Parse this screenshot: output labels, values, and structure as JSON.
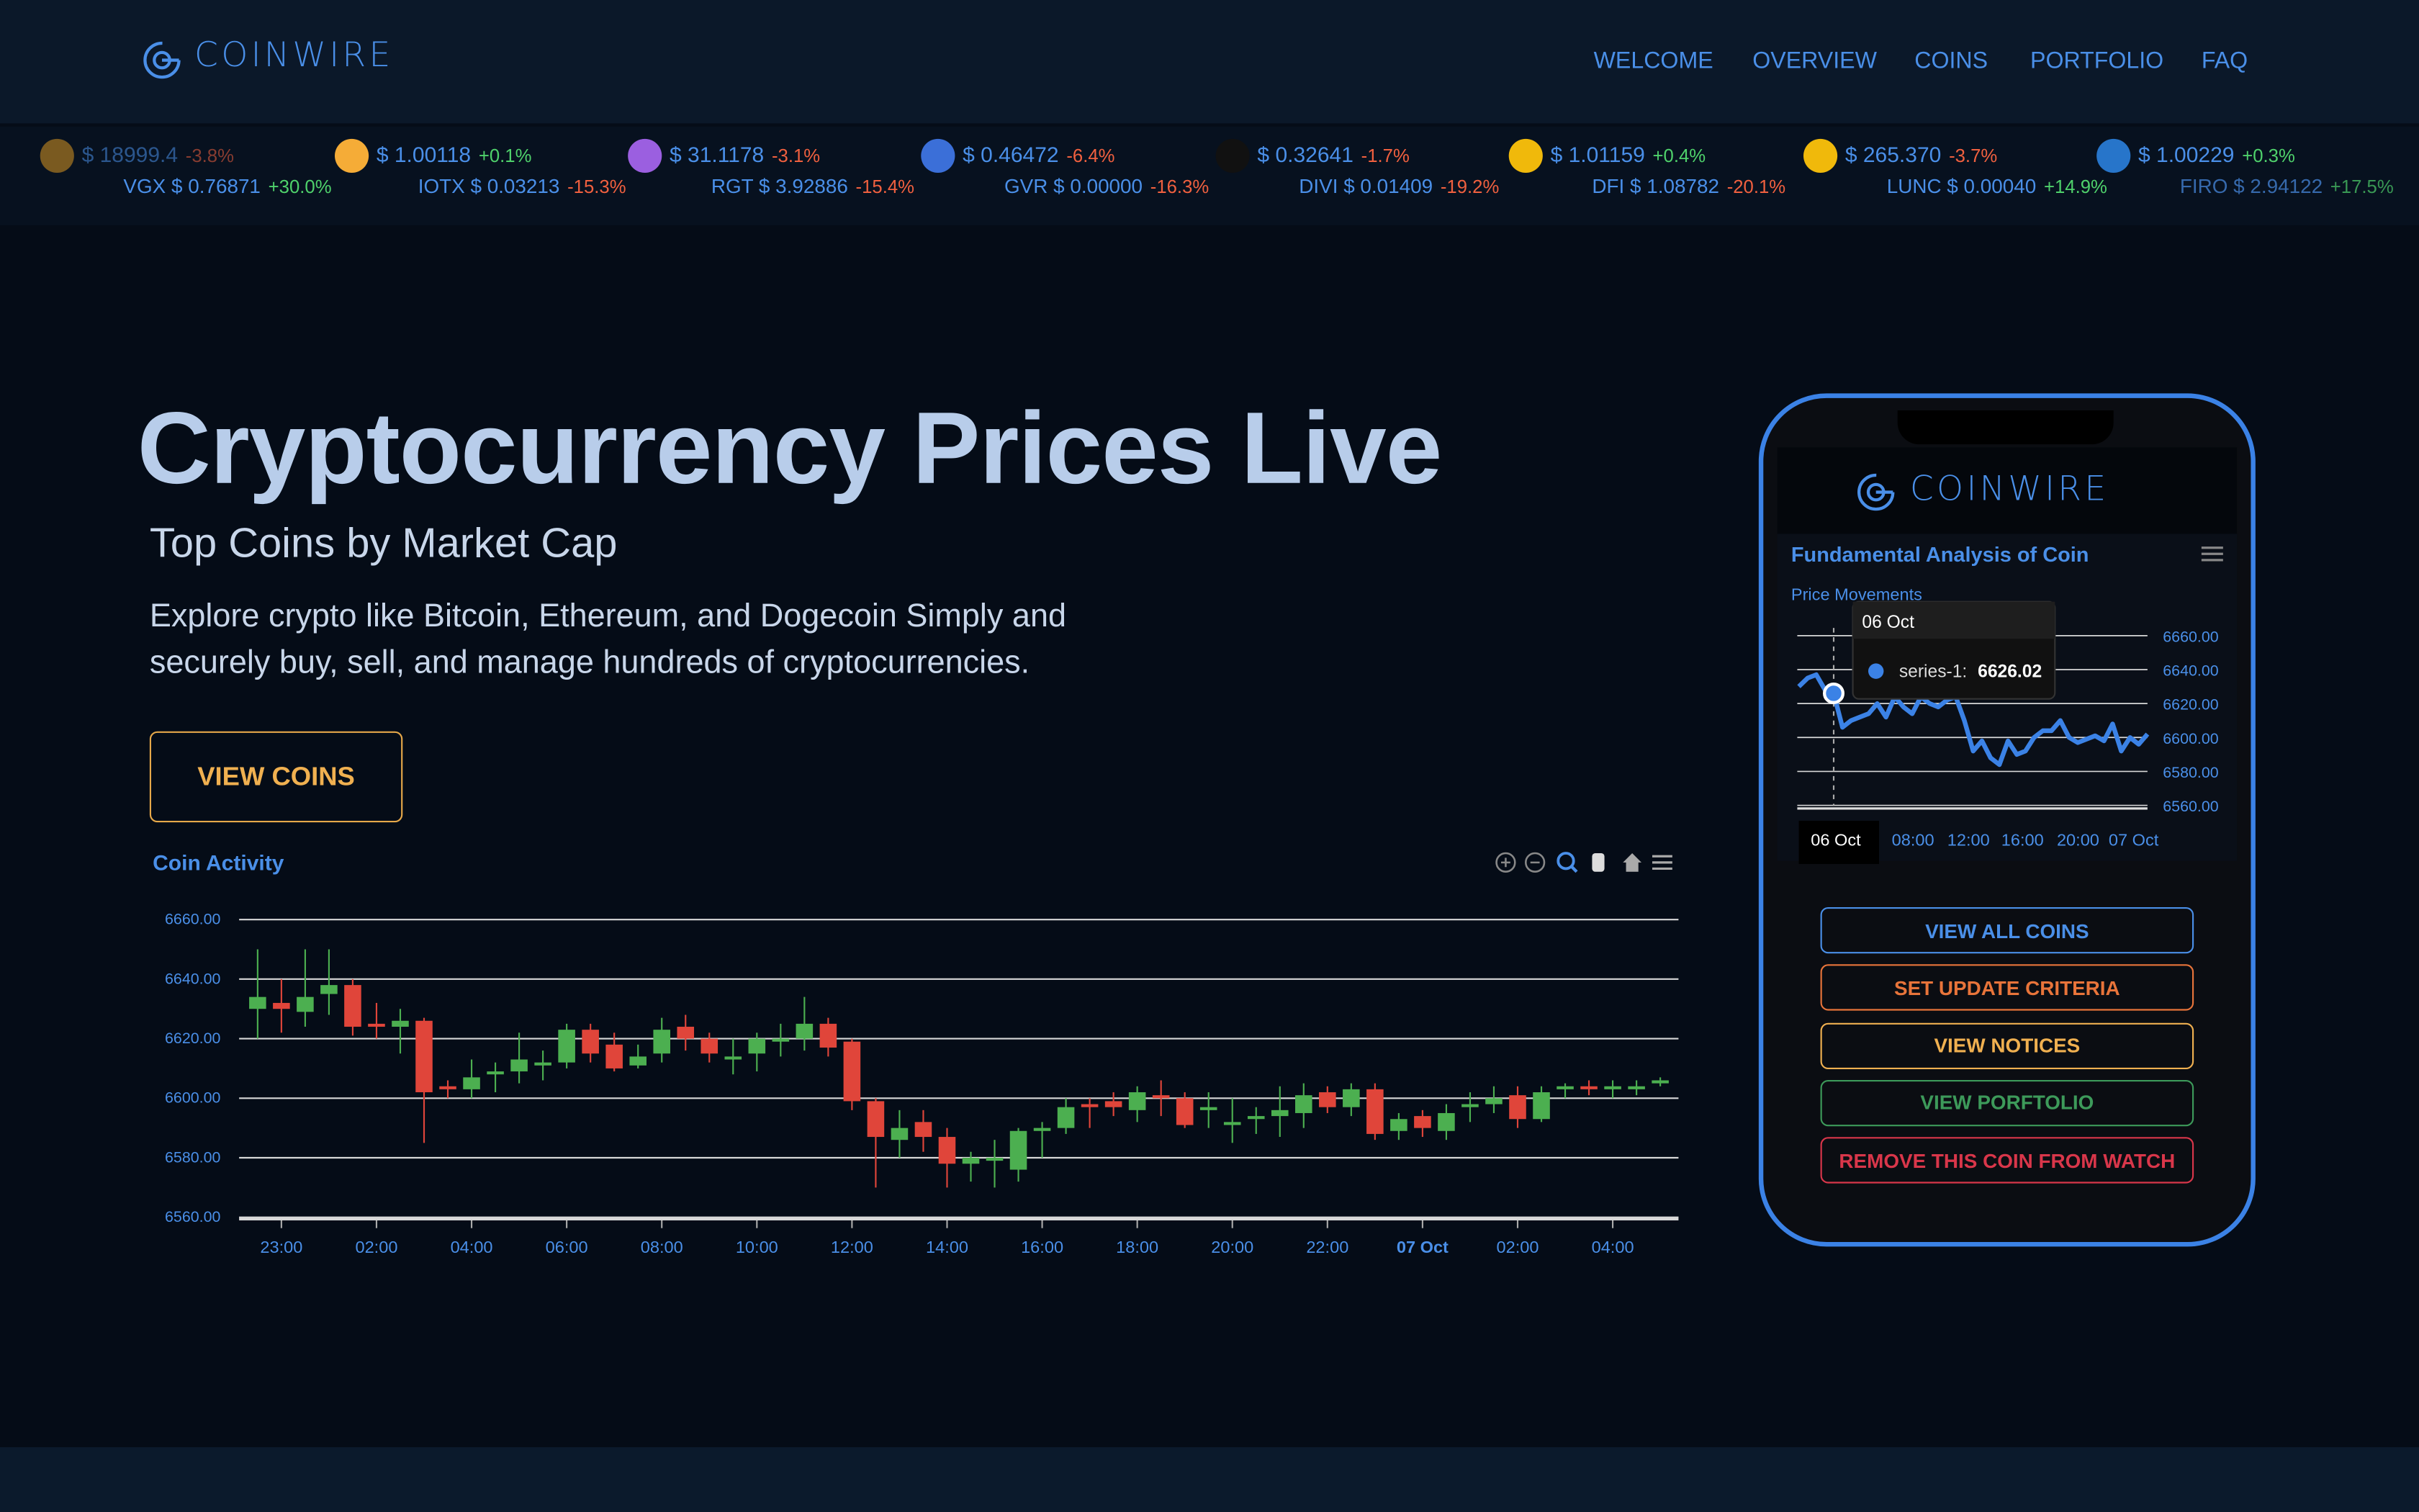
{
  "header": {
    "logo": "COINWIRE",
    "nav": [
      "WELCOME",
      "OVERVIEW",
      "COINS",
      "PORTFOLIO",
      "FAQ"
    ]
  },
  "ticker": {
    "top": [
      {
        "price": "$ 18999.4",
        "change": "-3.8%"
      },
      {
        "price": "$ 1.00118",
        "change": "+0.1%"
      },
      {
        "price": "$ 31.1178",
        "change": "-3.1%"
      },
      {
        "price": "$ 0.46472",
        "change": "-6.4%"
      },
      {
        "price": "$ 0.32641",
        "change": "-1.7%"
      },
      {
        "price": "$ 1.01159",
        "change": "+0.4%"
      },
      {
        "price": "$ 265.370",
        "change": "-3.7%"
      },
      {
        "price": "$ 1.00229",
        "change": "+0.3%"
      }
    ],
    "bottom": [
      {
        "coin": "VGX $ 0.76871",
        "change": "+30.0%"
      },
      {
        "coin": "IOTX $ 0.03213",
        "change": "-15.3%"
      },
      {
        "coin": "RGT $ 3.92886",
        "change": "-15.4%"
      },
      {
        "coin": "GVR $ 0.00000",
        "change": "-16.3%"
      },
      {
        "coin": "DIVI $ 0.01409",
        "change": "-19.2%"
      },
      {
        "coin": "DFI $ 1.08782",
        "change": "-20.1%"
      },
      {
        "coin": "LUNC $ 0.00040",
        "change": "+14.9%"
      },
      {
        "coin": "FIRO $ 2.94122",
        "change": "+17.5%"
      }
    ]
  },
  "hero": {
    "title": "Cryptocurrency Prices Live",
    "subtitle": "Top Coins by Market Cap",
    "description": "Explore crypto like Bitcoin, Ethereum, and Dogecoin Simply and securely buy, sell, and manage hundreds of cryptocurrencies.",
    "button": "VIEW COINS"
  },
  "chart_data": [
    {
      "type": "candlestick",
      "title": "Coin Activity",
      "up_color": "#4caf50",
      "down_color": "#e0453a",
      "open": [
        6630,
        6632,
        6629,
        6635,
        6638,
        6625,
        6624,
        6626,
        6604,
        6603,
        6608,
        6609,
        6611,
        6612,
        6623,
        6618,
        6611,
        6615,
        6624,
        6620,
        6613,
        6615,
        6619,
        6620,
        6625,
        6619,
        6599,
        6586,
        6592,
        6587,
        6578,
        6579,
        6576,
        6589,
        6590,
        6598,
        6599,
        6596,
        6601,
        6600,
        6596,
        6591,
        6593,
        6594,
        6595,
        6602,
        6597,
        6603,
        6589,
        6594,
        6589,
        6597,
        6598,
        6601,
        6593,
        6603,
        6604,
        6603,
        6603,
        6605
      ],
      "high": [
        6650,
        6640,
        6650,
        6650,
        6640,
        6632,
        6630,
        6627,
        6606,
        6613,
        6612,
        6622,
        6616,
        6625,
        6625,
        6622,
        6618,
        6627,
        6628,
        6622,
        6620,
        6622,
        6625,
        6634,
        6627,
        6620,
        6600,
        6596,
        6596,
        6590,
        6582,
        6586,
        6590,
        6592,
        6600,
        6600,
        6602,
        6604,
        6606,
        6602,
        6602,
        6600,
        6597,
        6604,
        6605,
        6604,
        6605,
        6605,
        6595,
        6596,
        6598,
        6602,
        6604,
        6604,
        6604,
        6605,
        6606,
        6606,
        6606,
        6607
      ],
      "low": [
        6620,
        6622,
        6624,
        6628,
        6621,
        6620,
        6615,
        6585,
        6600,
        6600,
        6602,
        6605,
        6606,
        6610,
        6612,
        6609,
        6610,
        6612,
        6616,
        6612,
        6608,
        6609,
        6614,
        6616,
        6614,
        6596,
        6570,
        6580,
        6582,
        6570,
        6572,
        6570,
        6572,
        6580,
        6588,
        6590,
        6594,
        6592,
        6594,
        6590,
        6590,
        6585,
        6588,
        6587,
        6590,
        6595,
        6594,
        6586,
        6586,
        6587,
        6586,
        6592,
        6595,
        6590,
        6592,
        6600,
        6601,
        6600,
        6601,
        6604
      ],
      "close": [
        6634,
        6630,
        6634,
        6638,
        6624,
        6624,
        6626,
        6602,
        6603,
        6607,
        6609,
        6613,
        6612,
        6623,
        6615,
        6610,
        6614,
        6623,
        6620,
        6615,
        6614,
        6620,
        6620,
        6625,
        6617,
        6599,
        6587,
        6590,
        6587,
        6578,
        6580,
        6580,
        6589,
        6590,
        6597,
        6597,
        6597,
        6602,
        6600,
        6591,
        6597,
        6592,
        6594,
        6596,
        6601,
        6597,
        6603,
        6588,
        6593,
        6590,
        6595,
        6598,
        6600,
        6593,
        6602,
        6604,
        6603,
        6604,
        6604,
        6606
      ],
      "ylim": [
        6560,
        6660
      ],
      "yticks": [
        {
          "value": 6660,
          "label": "6660.00"
        },
        {
          "value": 6640,
          "label": "6640.00"
        },
        {
          "value": 6620,
          "label": "6620.00"
        },
        {
          "value": 6600,
          "label": "6600.00"
        },
        {
          "value": 6580,
          "label": "6580.00"
        },
        {
          "value": 6560,
          "label": "6560.00"
        }
      ],
      "xticks": [
        {
          "value": 1,
          "label": "23:00"
        },
        {
          "value": 5,
          "label": "02:00"
        },
        {
          "value": 9,
          "label": "04:00"
        },
        {
          "value": 13,
          "label": "06:00"
        },
        {
          "value": 17,
          "label": "08:00"
        },
        {
          "value": 21,
          "label": "10:00"
        },
        {
          "value": 25,
          "label": "12:00"
        },
        {
          "value": 29,
          "label": "14:00"
        },
        {
          "value": 33,
          "label": "16:00"
        },
        {
          "value": 37,
          "label": "18:00"
        },
        {
          "value": 41,
          "label": "20:00"
        },
        {
          "value": 45,
          "label": "22:00"
        },
        {
          "value": 49,
          "label": "07 Oct"
        },
        {
          "value": 53,
          "label": "02:00"
        },
        {
          "value": 57,
          "label": "04:00"
        }
      ],
      "grid": true
    },
    {
      "type": "line",
      "title": "Fundamental Analysis of Coin",
      "subtitle": "Price Movements",
      "color": "#3b82e6",
      "values": [
        6630,
        6635,
        6637,
        6628,
        6626.02,
        6606,
        6610,
        6612,
        6614,
        6620,
        6612,
        6624,
        6618,
        6614,
        6624,
        6620,
        6618,
        6622,
        6624,
        6610,
        6592,
        6598,
        6588,
        6584,
        6598,
        6590,
        6592,
        6600,
        6604,
        6604,
        6610,
        6600,
        6597,
        6599,
        6601,
        6598,
        6608,
        6592,
        6600,
        6596,
        6602
      ],
      "ylim": [
        6560,
        6660
      ],
      "yticks": [
        {
          "value": 6660,
          "label": "6660.00"
        },
        {
          "value": 6640,
          "label": "6640.00"
        },
        {
          "value": 6620,
          "label": "6620.00"
        },
        {
          "value": 6600,
          "label": "6600.00"
        },
        {
          "value": 6580,
          "label": "6580.00"
        },
        {
          "value": 6560,
          "label": "6560.00"
        }
      ],
      "x_labels": [
        "06 Oct",
        "08:00",
        "12:00",
        "16:00",
        "20:00",
        "07 Oct"
      ],
      "tooltip": {
        "title": "06 Oct",
        "label": "series-1:",
        "value": "6626.02",
        "index": 4
      },
      "grid": true
    }
  ],
  "phone": {
    "logo": "COINWIRE",
    "buttons": [
      {
        "label": "VIEW ALL COINS",
        "color": "#4a8fe8"
      },
      {
        "label": "SET UPDATE CRITERIA",
        "color": "#e8743a"
      },
      {
        "label": "VIEW NOTICES",
        "color": "#f0b050"
      },
      {
        "label": "VIEW PORFTOLIO",
        "color": "#3d9a5a"
      },
      {
        "label": "REMOVE THIS COIN FROM WATCH",
        "color": "#d9364a"
      }
    ]
  }
}
